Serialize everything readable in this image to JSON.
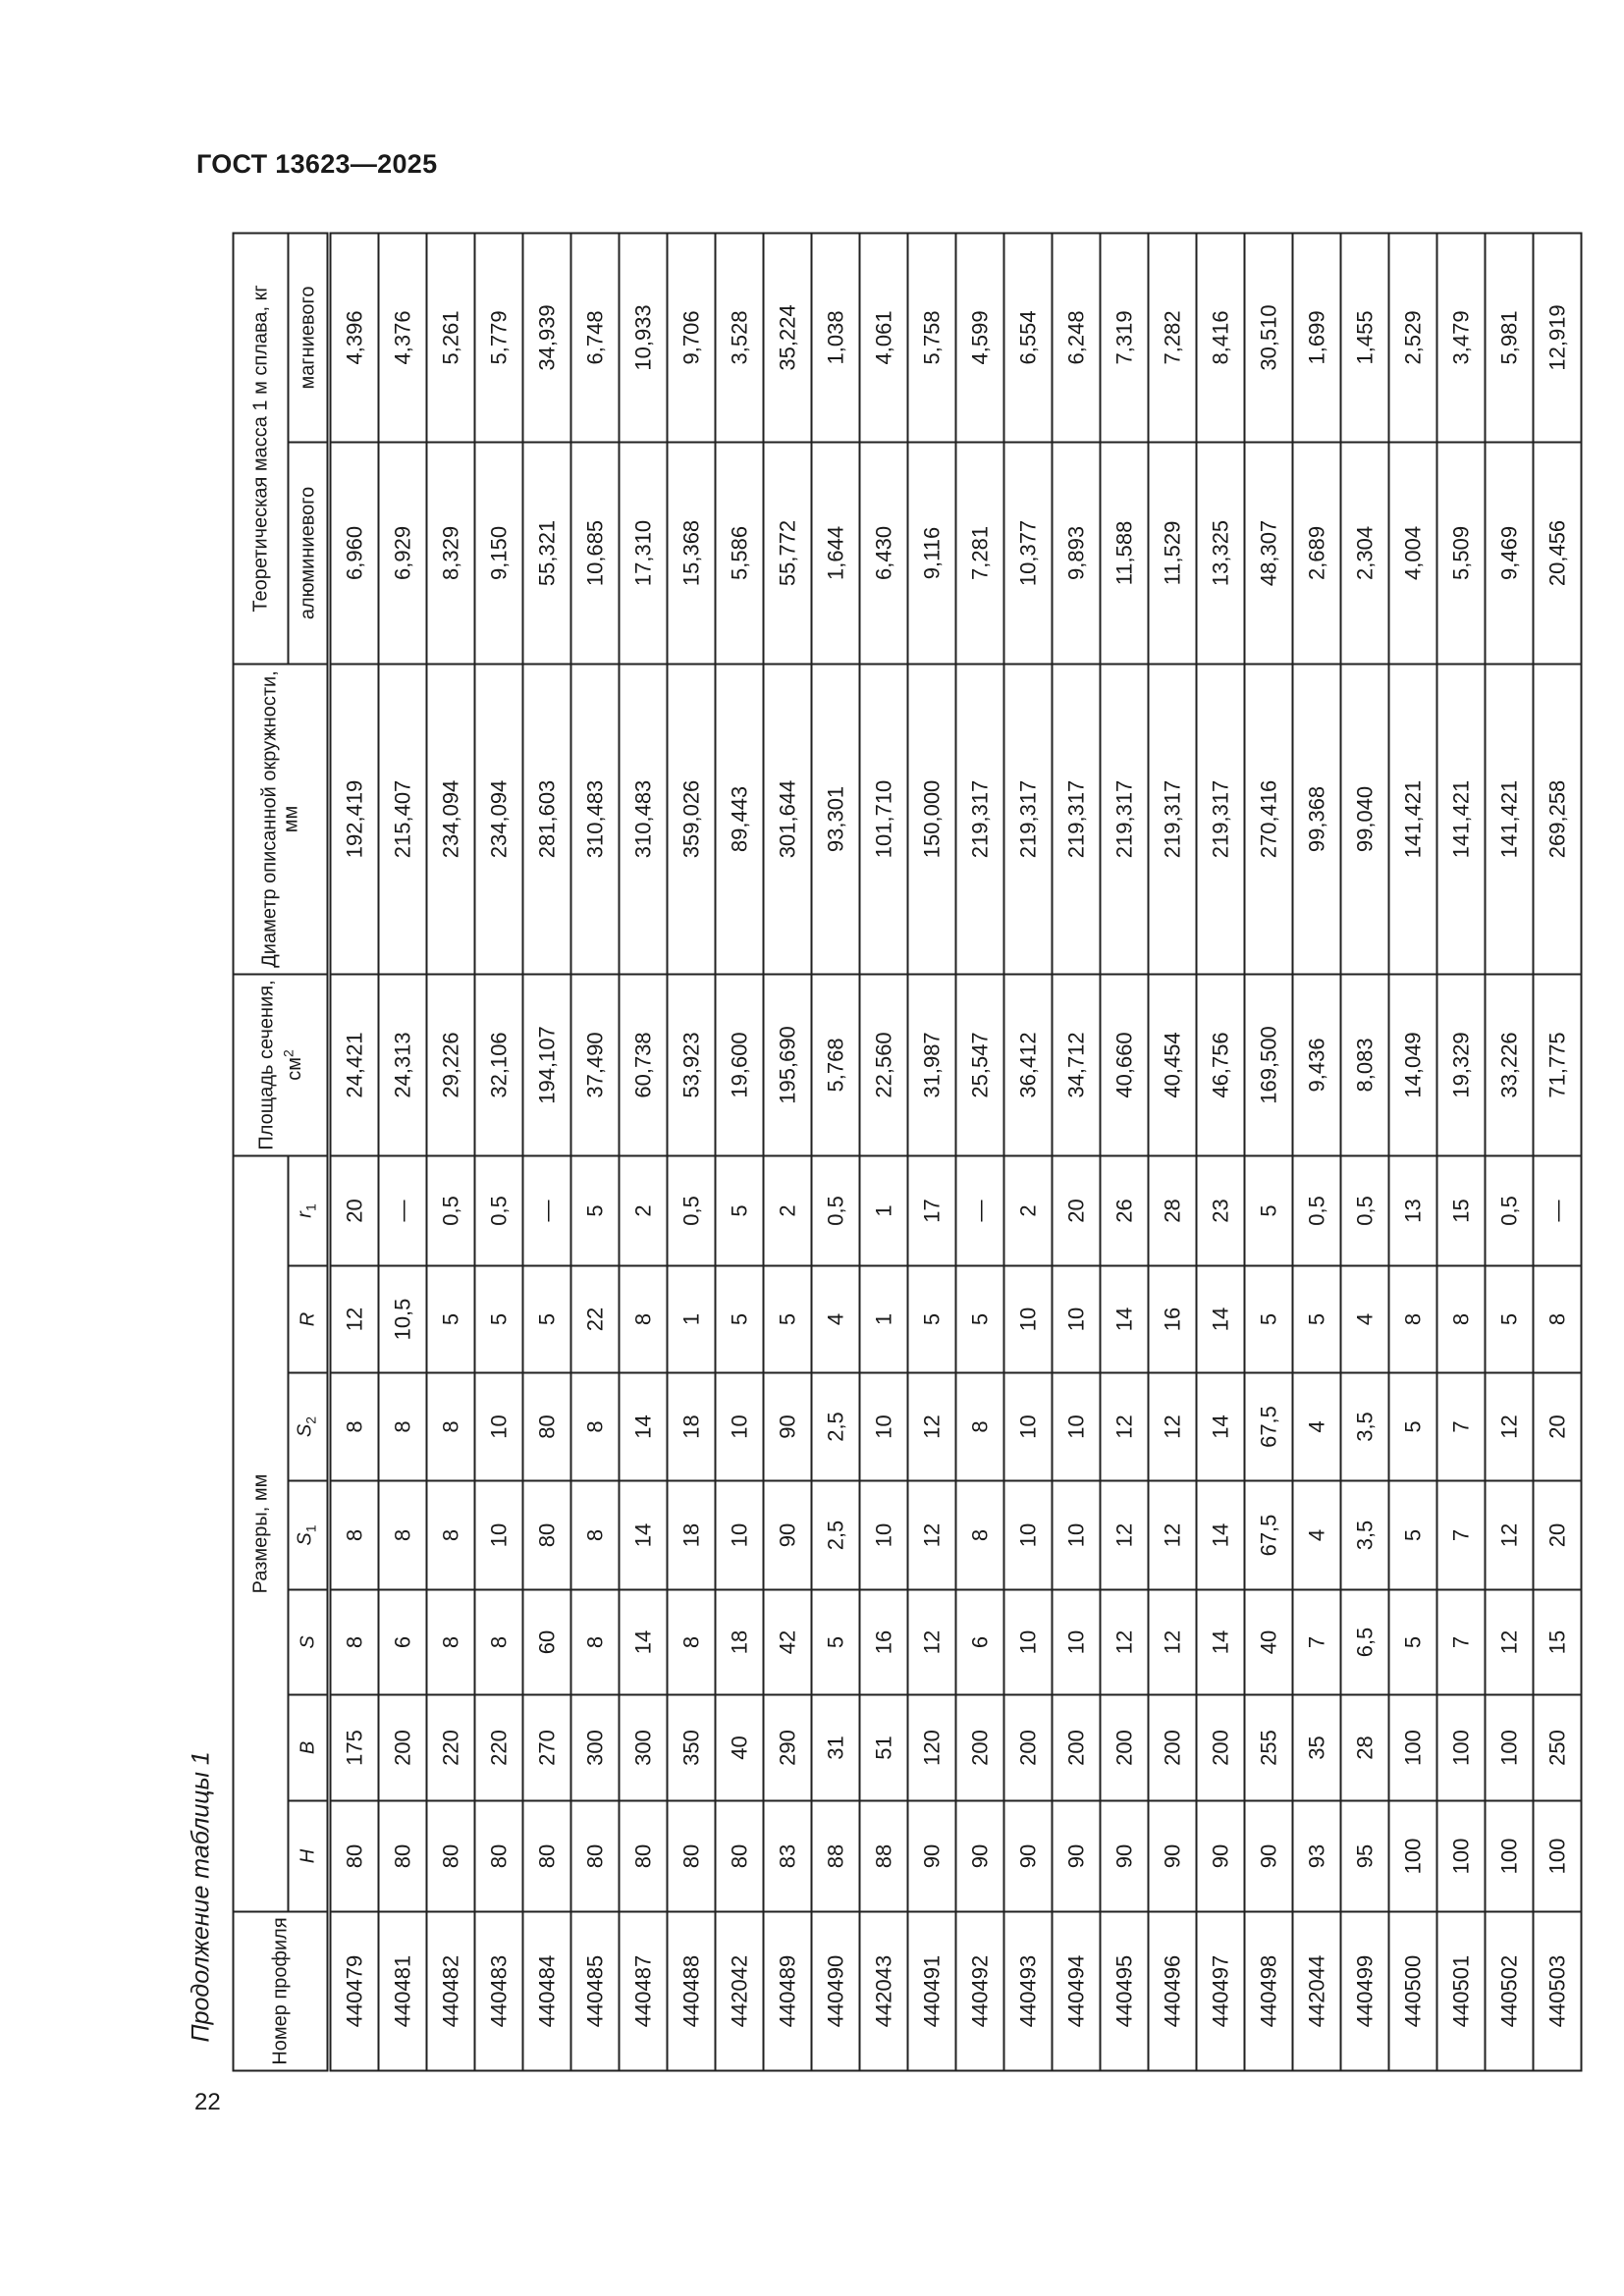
{
  "document": {
    "header": "ГОСТ 13623—2025",
    "page_number": "22",
    "caption": "Продолжение таблицы 1"
  },
  "table": {
    "headers": {
      "profile_number": "Номер профиля",
      "dimensions_group": "Размеры, мм",
      "H": "H",
      "B": "B",
      "S": "S",
      "S1_main": "S",
      "S1_sub": "1",
      "S2_main": "S",
      "S2_sub": "2",
      "R": "R",
      "r1_main": "r",
      "r1_sub": "1",
      "area_main": "Площадь сечения, см",
      "area_sup": "2",
      "diameter": "Диаметр описанной окружности, мм",
      "mass_group": "Теоретическая масса 1 м сплава, кг",
      "aluminium": "алюминиевого",
      "magnesium": "магниевого"
    },
    "rows": [
      [
        "440479",
        "80",
        "175",
        "8",
        "8",
        "8",
        "12",
        "20",
        "24,421",
        "192,419",
        "6,960",
        "4,396"
      ],
      [
        "440481",
        "80",
        "200",
        "6",
        "8",
        "8",
        "10,5",
        "—",
        "24,313",
        "215,407",
        "6,929",
        "4,376"
      ],
      [
        "440482",
        "80",
        "220",
        "8",
        "8",
        "8",
        "5",
        "0,5",
        "29,226",
        "234,094",
        "8,329",
        "5,261"
      ],
      [
        "440483",
        "80",
        "220",
        "8",
        "10",
        "10",
        "5",
        "0,5",
        "32,106",
        "234,094",
        "9,150",
        "5,779"
      ],
      [
        "440484",
        "80",
        "270",
        "60",
        "80",
        "80",
        "5",
        "—",
        "194,107",
        "281,603",
        "55,321",
        "34,939"
      ],
      [
        "440485",
        "80",
        "300",
        "8",
        "8",
        "8",
        "22",
        "5",
        "37,490",
        "310,483",
        "10,685",
        "6,748"
      ],
      [
        "440487",
        "80",
        "300",
        "14",
        "14",
        "14",
        "8",
        "2",
        "60,738",
        "310,483",
        "17,310",
        "10,933"
      ],
      [
        "440488",
        "80",
        "350",
        "8",
        "18",
        "18",
        "1",
        "0,5",
        "53,923",
        "359,026",
        "15,368",
        "9,706"
      ],
      [
        "442042",
        "80",
        "40",
        "18",
        "10",
        "10",
        "5",
        "5",
        "19,600",
        "89,443",
        "5,586",
        "3,528"
      ],
      [
        "440489",
        "83",
        "290",
        "42",
        "90",
        "90",
        "5",
        "2",
        "195,690",
        "301,644",
        "55,772",
        "35,224"
      ],
      [
        "440490",
        "88",
        "31",
        "5",
        "2,5",
        "2,5",
        "4",
        "0,5",
        "5,768",
        "93,301",
        "1,644",
        "1,038"
      ],
      [
        "442043",
        "88",
        "51",
        "16",
        "10",
        "10",
        "1",
        "1",
        "22,560",
        "101,710",
        "6,430",
        "4,061"
      ],
      [
        "440491",
        "90",
        "120",
        "12",
        "12",
        "12",
        "5",
        "17",
        "31,987",
        "150,000",
        "9,116",
        "5,758"
      ],
      [
        "440492",
        "90",
        "200",
        "6",
        "8",
        "8",
        "5",
        "—",
        "25,547",
        "219,317",
        "7,281",
        "4,599"
      ],
      [
        "440493",
        "90",
        "200",
        "10",
        "10",
        "10",
        "10",
        "2",
        "36,412",
        "219,317",
        "10,377",
        "6,554"
      ],
      [
        "440494",
        "90",
        "200",
        "10",
        "10",
        "10",
        "10",
        "20",
        "34,712",
        "219,317",
        "9,893",
        "6,248"
      ],
      [
        "440495",
        "90",
        "200",
        "12",
        "12",
        "12",
        "14",
        "26",
        "40,660",
        "219,317",
        "11,588",
        "7,319"
      ],
      [
        "440496",
        "90",
        "200",
        "12",
        "12",
        "12",
        "16",
        "28",
        "40,454",
        "219,317",
        "11,529",
        "7,282"
      ],
      [
        "440497",
        "90",
        "200",
        "14",
        "14",
        "14",
        "14",
        "23",
        "46,756",
        "219,317",
        "13,325",
        "8,416"
      ],
      [
        "440498",
        "90",
        "255",
        "40",
        "67,5",
        "67,5",
        "5",
        "5",
        "169,500",
        "270,416",
        "48,307",
        "30,510"
      ],
      [
        "442044",
        "93",
        "35",
        "7",
        "4",
        "4",
        "5",
        "0,5",
        "9,436",
        "99,368",
        "2,689",
        "1,699"
      ],
      [
        "440499",
        "95",
        "28",
        "6,5",
        "3,5",
        "3,5",
        "4",
        "0,5",
        "8,083",
        "99,040",
        "2,304",
        "1,455"
      ],
      [
        "440500",
        "100",
        "100",
        "5",
        "5",
        "5",
        "8",
        "13",
        "14,049",
        "141,421",
        "4,004",
        "2,529"
      ],
      [
        "440501",
        "100",
        "100",
        "7",
        "7",
        "7",
        "8",
        "15",
        "19,329",
        "141,421",
        "5,509",
        "3,479"
      ],
      [
        "440502",
        "100",
        "100",
        "12",
        "12",
        "12",
        "5",
        "0,5",
        "33,226",
        "141,421",
        "9,469",
        "5,981"
      ],
      [
        "440503",
        "100",
        "250",
        "15",
        "20",
        "20",
        "8",
        "—",
        "71,775",
        "269,258",
        "20,456",
        "12,919"
      ]
    ]
  }
}
